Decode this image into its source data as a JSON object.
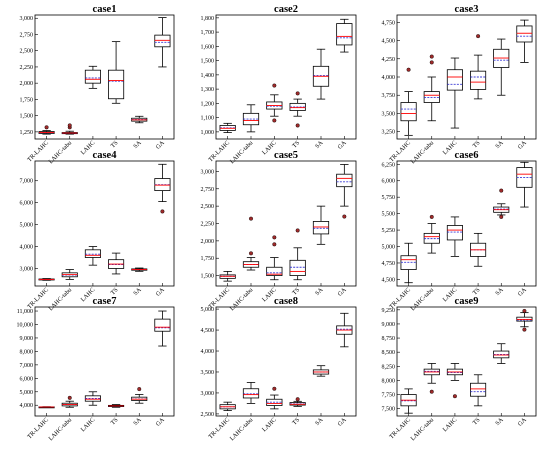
{
  "figure": {
    "categories": [
      "TR-LAHC",
      "LAHC-tabu",
      "LAHC",
      "TS",
      "SA",
      "GA"
    ]
  },
  "style": {
    "box_edge": "#000000",
    "median_color": "#ff0000",
    "mean_color": "#3b3bd6",
    "outlier_fill": "#9e2a2a"
  },
  "chart_data": [
    {
      "type": "box",
      "title": "case1",
      "ylim": [
        1140,
        3050
      ],
      "yticks": [
        1250,
        1500,
        1750,
        2000,
        2250,
        2500,
        2750,
        3000
      ],
      "yticklabels": [
        "1,250",
        "1,500",
        "1,750",
        "2,000",
        "2,250",
        "2,500",
        "2,750",
        "3,000"
      ],
      "boxes": [
        {
          "min": 1215,
          "q1": 1225,
          "median": 1240,
          "mean": 1238,
          "q3": 1255,
          "max": 1270,
          "outliers": [
            1320
          ]
        },
        {
          "min": 1215,
          "q1": 1222,
          "median": 1232,
          "mean": 1230,
          "q3": 1240,
          "max": 1260,
          "outliers": [
            1320,
            1350
          ]
        },
        {
          "min": 1920,
          "q1": 2000,
          "median": 2060,
          "mean": 2080,
          "q3": 2200,
          "max": 2260,
          "outliers": []
        },
        {
          "min": 1690,
          "q1": 1760,
          "median": 2040,
          "mean": 2030,
          "q3": 2200,
          "max": 2640,
          "outliers": []
        },
        {
          "min": 1390,
          "q1": 1415,
          "median": 1435,
          "mean": 1440,
          "q3": 1460,
          "max": 1490,
          "outliers": []
        },
        {
          "min": 2250,
          "q1": 2560,
          "median": 2660,
          "mean": 2630,
          "q3": 2740,
          "max": 3010,
          "outliers": []
        }
      ]
    },
    {
      "type": "box",
      "title": "case2",
      "ylim": [
        950,
        1820
      ],
      "yticks": [
        1000,
        1100,
        1200,
        1300,
        1400,
        1500,
        1600,
        1700,
        1800
      ],
      "yticklabels": [
        "1,000",
        "1,100",
        "1,200",
        "1,300",
        "1,400",
        "1,500",
        "1,600",
        "1,700",
        "1,800"
      ],
      "boxes": [
        {
          "min": 995,
          "q1": 1010,
          "median": 1025,
          "mean": 1028,
          "q3": 1045,
          "max": 1060,
          "outliers": []
        },
        {
          "min": 1000,
          "q1": 1050,
          "median": 1080,
          "mean": 1090,
          "q3": 1130,
          "max": 1190,
          "outliers": []
        },
        {
          "min": 1110,
          "q1": 1160,
          "median": 1185,
          "mean": 1180,
          "q3": 1210,
          "max": 1260,
          "outliers": [
            1080,
            1325
          ]
        },
        {
          "min": 1110,
          "q1": 1150,
          "median": 1170,
          "mean": 1175,
          "q3": 1200,
          "max": 1230,
          "outliers": [
            1045,
            1270
          ]
        },
        {
          "min": 1230,
          "q1": 1320,
          "median": 1390,
          "mean": 1395,
          "q3": 1460,
          "max": 1580,
          "outliers": []
        },
        {
          "min": 1560,
          "q1": 1610,
          "median": 1670,
          "mean": 1660,
          "q3": 1760,
          "max": 1790,
          "outliers": []
        }
      ]
    },
    {
      "type": "box",
      "title": "case3",
      "ylim": [
        3150,
        4850
      ],
      "yticks": [
        3250,
        3500,
        3750,
        4000,
        4250,
        4500,
        4750
      ],
      "yticklabels": [
        "3,250",
        "3,500",
        "3,750",
        "4,000",
        "4,250",
        "4,500",
        "4,750"
      ],
      "boxes": [
        {
          "min": 3200,
          "q1": 3400,
          "median": 3500,
          "mean": 3560,
          "q3": 3650,
          "max": 3800,
          "outliers": [
            4100
          ]
        },
        {
          "min": 3400,
          "q1": 3650,
          "median": 3750,
          "mean": 3720,
          "q3": 3800,
          "max": 4000,
          "outliers": [
            4200,
            4280
          ]
        },
        {
          "min": 3300,
          "q1": 3820,
          "median": 4000,
          "mean": 3900,
          "q3": 4100,
          "max": 4260,
          "outliers": []
        },
        {
          "min": 3700,
          "q1": 3830,
          "median": 3930,
          "mean": 4000,
          "q3": 4080,
          "max": 4300,
          "outliers": [
            4560
          ]
        },
        {
          "min": 3750,
          "q1": 4130,
          "median": 4260,
          "mean": 4230,
          "q3": 4380,
          "max": 4520,
          "outliers": []
        },
        {
          "min": 4200,
          "q1": 4480,
          "median": 4600,
          "mean": 4560,
          "q3": 4700,
          "max": 4780,
          "outliers": []
        }
      ]
    },
    {
      "type": "box",
      "title": "case4",
      "ylim": [
        2200,
        7900
      ],
      "yticks": [
        3000,
        4000,
        5000,
        6000,
        7000
      ],
      "yticklabels": [
        "3,000",
        "4,000",
        "5,000",
        "6,000",
        "7,000"
      ],
      "boxes": [
        {
          "min": 2460,
          "q1": 2480,
          "median": 2500,
          "mean": 2500,
          "q3": 2520,
          "max": 2540,
          "outliers": []
        },
        {
          "min": 2500,
          "q1": 2620,
          "median": 2720,
          "mean": 2700,
          "q3": 2800,
          "max": 2950,
          "outliers": []
        },
        {
          "min": 3150,
          "q1": 3500,
          "median": 3600,
          "mean": 3650,
          "q3": 3850,
          "max": 4000,
          "outliers": []
        },
        {
          "min": 2750,
          "q1": 3000,
          "median": 3200,
          "mean": 3180,
          "q3": 3400,
          "max": 3700,
          "outliers": []
        },
        {
          "min": 2870,
          "q1": 2920,
          "median": 2950,
          "mean": 2950,
          "q3": 2980,
          "max": 3020,
          "outliers": []
        },
        {
          "min": 6050,
          "q1": 6550,
          "median": 6800,
          "mean": 6820,
          "q3": 7100,
          "max": 7750,
          "outliers": [
            5600
          ]
        }
      ]
    },
    {
      "type": "box",
      "title": "case5",
      "ylim": [
        1350,
        3150
      ],
      "yticks": [
        1500,
        1750,
        2000,
        2250,
        2500,
        2750,
        3000
      ],
      "yticklabels": [
        "1,500",
        "1,750",
        "2,000",
        "2,250",
        "2,500",
        "2,750",
        "3,000"
      ],
      "boxes": [
        {
          "min": 1420,
          "q1": 1460,
          "median": 1490,
          "mean": 1490,
          "q3": 1510,
          "max": 1560,
          "outliers": []
        },
        {
          "min": 1580,
          "q1": 1620,
          "median": 1660,
          "mean": 1660,
          "q3": 1700,
          "max": 1760,
          "outliers": [
            1820,
            2320
          ]
        },
        {
          "min": 1440,
          "q1": 1500,
          "median": 1520,
          "mean": 1540,
          "q3": 1620,
          "max": 1760,
          "outliers": [
            1950,
            2050
          ]
        },
        {
          "min": 1440,
          "q1": 1500,
          "median": 1560,
          "mean": 1620,
          "q3": 1720,
          "max": 1900,
          "outliers": [
            2150
          ]
        },
        {
          "min": 1950,
          "q1": 2100,
          "median": 2200,
          "mean": 2180,
          "q3": 2280,
          "max": 2500,
          "outliers": []
        },
        {
          "min": 2500,
          "q1": 2780,
          "median": 2900,
          "mean": 2850,
          "q3": 2960,
          "max": 3100,
          "outliers": [
            2350
          ]
        }
      ]
    },
    {
      "type": "box",
      "title": "case6",
      "ylim": [
        4400,
        6300
      ],
      "yticks": [
        4500,
        4750,
        5000,
        5250,
        5500,
        5750,
        6000,
        6250
      ],
      "yticklabels": [
        "4,500",
        "4,750",
        "5,000",
        "5,250",
        "5,500",
        "5,750",
        "6,000",
        "6,250"
      ],
      "boxes": [
        {
          "min": 4450,
          "q1": 4650,
          "median": 4800,
          "mean": 4760,
          "q3": 4860,
          "max": 5050,
          "outliers": []
        },
        {
          "min": 4900,
          "q1": 5050,
          "median": 5150,
          "mean": 5120,
          "q3": 5200,
          "max": 5350,
          "outliers": [
            5450
          ]
        },
        {
          "min": 4850,
          "q1": 5100,
          "median": 5250,
          "mean": 5220,
          "q3": 5320,
          "max": 5450,
          "outliers": []
        },
        {
          "min": 4700,
          "q1": 4850,
          "median": 4950,
          "mean": 4950,
          "q3": 5050,
          "max": 5200,
          "outliers": []
        },
        {
          "min": 5480,
          "q1": 5520,
          "median": 5560,
          "mean": 5570,
          "q3": 5600,
          "max": 5650,
          "outliers": [
            5450,
            5850
          ]
        },
        {
          "min": 5600,
          "q1": 5900,
          "median": 6100,
          "mean": 6050,
          "q3": 6200,
          "max": 6280,
          "outliers": []
        }
      ]
    },
    {
      "type": "box",
      "title": "case7",
      "ylim": [
        3200,
        11300
      ],
      "yticks": [
        4000,
        5000,
        6000,
        7000,
        8000,
        9000,
        10000,
        11000
      ],
      "yticklabels": [
        "4,000",
        "5,000",
        "6,000",
        "7,000",
        "8,000",
        "9,000",
        "10,000",
        "11,000"
      ],
      "boxes": [
        {
          "min": 3850,
          "q1": 3860,
          "median": 3870,
          "mean": 3870,
          "q3": 3880,
          "max": 3890,
          "outliers": []
        },
        {
          "min": 3850,
          "q1": 3950,
          "median": 4050,
          "mean": 4050,
          "q3": 4150,
          "max": 4300,
          "outliers": [
            4550
          ]
        },
        {
          "min": 4000,
          "q1": 4300,
          "median": 4450,
          "mean": 4500,
          "q3": 4700,
          "max": 5000,
          "outliers": []
        },
        {
          "min": 3850,
          "q1": 3900,
          "median": 3950,
          "mean": 3950,
          "q3": 3990,
          "max": 4050,
          "outliers": []
        },
        {
          "min": 4150,
          "q1": 4350,
          "median": 4450,
          "mean": 4470,
          "q3": 4600,
          "max": 4800,
          "outliers": [
            5200
          ]
        },
        {
          "min": 8400,
          "q1": 9500,
          "median": 9800,
          "mean": 9750,
          "q3": 10400,
          "max": 11000,
          "outliers": []
        }
      ]
    },
    {
      "type": "box",
      "title": "case8",
      "ylim": [
        2450,
        5050
      ],
      "yticks": [
        2500,
        3000,
        3500,
        4000,
        4500,
        5000
      ],
      "yticklabels": [
        "2,500",
        "3,000",
        "3,500",
        "4,000",
        "4,500",
        "5,000"
      ],
      "boxes": [
        {
          "min": 2580,
          "q1": 2620,
          "median": 2670,
          "mean": 2670,
          "q3": 2720,
          "max": 2780,
          "outliers": []
        },
        {
          "min": 2750,
          "q1": 2880,
          "median": 2960,
          "mean": 2980,
          "q3": 3100,
          "max": 3250,
          "outliers": []
        },
        {
          "min": 2620,
          "q1": 2700,
          "median": 2750,
          "mean": 2780,
          "q3": 2850,
          "max": 2950,
          "outliers": [
            3100
          ]
        },
        {
          "min": 2680,
          "q1": 2710,
          "median": 2730,
          "mean": 2740,
          "q3": 2770,
          "max": 2800,
          "outliers": [
            2850
          ]
        },
        {
          "min": 3400,
          "q1": 3450,
          "median": 3500,
          "mean": 3500,
          "q3": 3550,
          "max": 3650,
          "outliers": []
        },
        {
          "min": 4100,
          "q1": 4400,
          "median": 4500,
          "mean": 4520,
          "q3": 4600,
          "max": 4900,
          "outliers": []
        }
      ]
    },
    {
      "type": "box",
      "title": "case9",
      "ylim": [
        7370,
        9300
      ],
      "yticks": [
        7500,
        7750,
        8000,
        8250,
        8500,
        8750,
        9000,
        9250
      ],
      "yticklabels": [
        "7,500",
        "7,750",
        "8,000",
        "8,250",
        "8,500",
        "8,750",
        "9,000",
        "9,250"
      ],
      "boxes": [
        {
          "min": 7420,
          "q1": 7550,
          "median": 7650,
          "mean": 7640,
          "q3": 7750,
          "max": 7850,
          "outliers": []
        },
        {
          "min": 7950,
          "q1": 8100,
          "median": 8150,
          "mean": 8160,
          "q3": 8200,
          "max": 8300,
          "outliers": [
            7800
          ]
        },
        {
          "min": 8000,
          "q1": 8100,
          "median": 8150,
          "mean": 8140,
          "q3": 8200,
          "max": 8300,
          "outliers": [
            7720
          ]
        },
        {
          "min": 7550,
          "q1": 7720,
          "median": 7850,
          "mean": 7800,
          "q3": 7950,
          "max": 8100,
          "outliers": []
        },
        {
          "min": 8300,
          "q1": 8400,
          "median": 8450,
          "mean": 8460,
          "q3": 8520,
          "max": 8650,
          "outliers": []
        },
        {
          "min": 8950,
          "q1": 9050,
          "median": 9080,
          "mean": 9070,
          "q3": 9120,
          "max": 9200,
          "outliers": [
            8900,
            9230
          ]
        }
      ]
    }
  ]
}
